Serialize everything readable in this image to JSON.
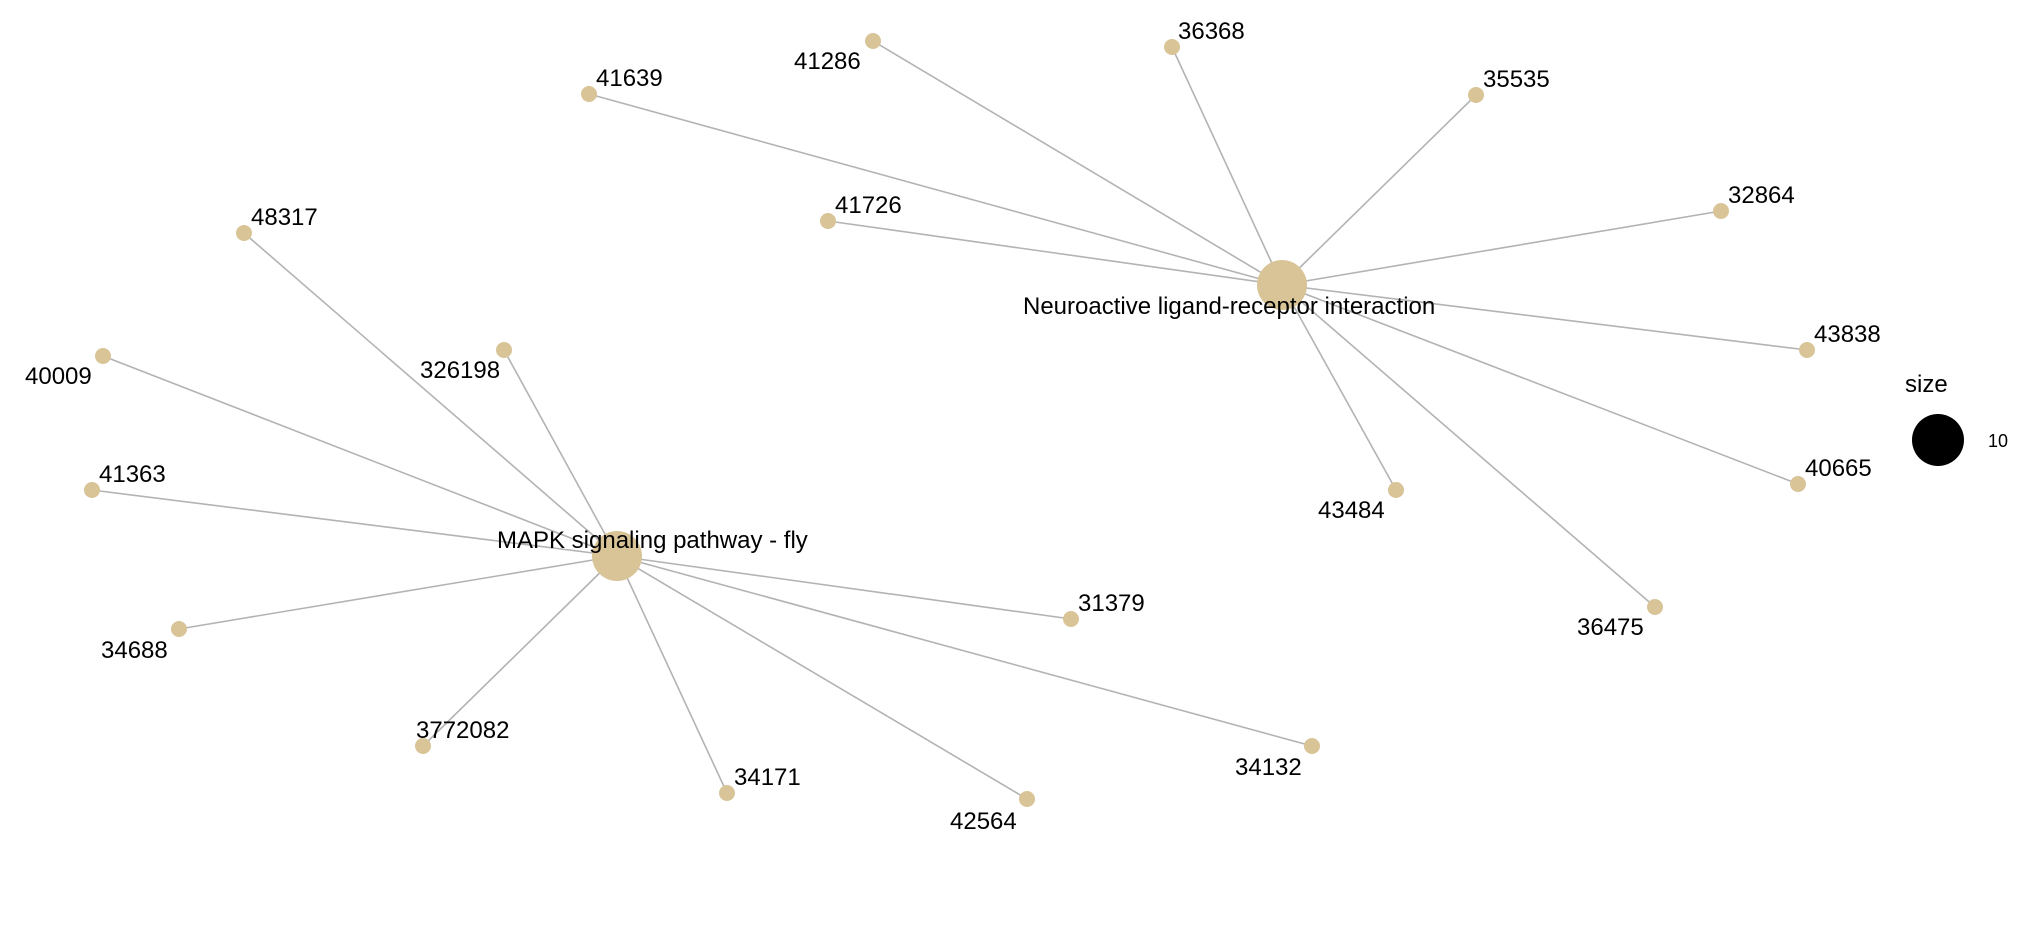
{
  "legend": {
    "title": "size",
    "entry_label": "10",
    "color": "#000000"
  },
  "colors": {
    "node": "#d9c497",
    "edge": "#b3b3b3",
    "text": "#000000",
    "background": "#ffffff"
  },
  "pathways": [
    {
      "id": "neuro",
      "label": "Neuroactive ligand-receptor interaction",
      "genes": [
        "36368",
        "41286",
        "41639",
        "35535",
        "41726",
        "32864",
        "43838",
        "40665",
        "43484",
        "36475"
      ]
    },
    {
      "id": "mapk",
      "label": "MAPK signaling pathway - fly",
      "genes": [
        "48317",
        "326198",
        "40009",
        "41363",
        "34688",
        "3772082",
        "34171",
        "42564",
        "34132",
        "31379"
      ]
    }
  ]
}
